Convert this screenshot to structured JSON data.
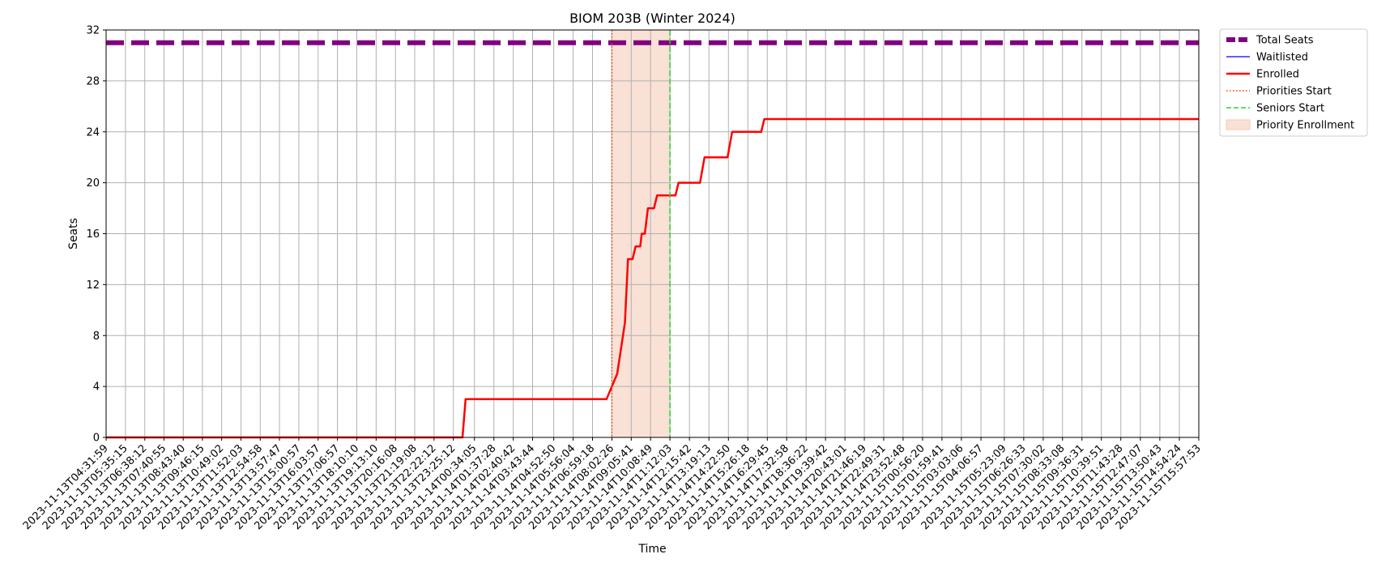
{
  "chart_data": {
    "type": "line",
    "title": "BIOM 203B (Winter 2024)",
    "xlabel": "Time",
    "ylabel": "Seats",
    "ylim": [
      0,
      32
    ],
    "yticks": [
      0,
      4,
      8,
      12,
      16,
      20,
      24,
      28,
      32
    ],
    "grid": true,
    "legend_position": "outside-top-right",
    "x_tick_labels": [
      "2023-11-13T04:31:59",
      "2023-11-13T05:35:15",
      "2023-11-13T06:38:12",
      "2023-11-13T07:40:55",
      "2023-11-13T08:43:40",
      "2023-11-13T09:46:15",
      "2023-11-13T10:49:02",
      "2023-11-13T11:52:03",
      "2023-11-13T12:54:58",
      "2023-11-13T13:57:47",
      "2023-11-13T15:00:57",
      "2023-11-13T16:03:57",
      "2023-11-13T17:06:57",
      "2023-11-13T18:10:10",
      "2023-11-13T19:13:10",
      "2023-11-13T20:16:08",
      "2023-11-13T21:19:08",
      "2023-11-13T22:22:12",
      "2023-11-13T23:25:12",
      "2023-11-14T00:34:05",
      "2023-11-14T01:37:28",
      "2023-11-14T02:40:42",
      "2023-11-14T03:43:44",
      "2023-11-14T04:52:50",
      "2023-11-14T05:56:04",
      "2023-11-14T06:59:18",
      "2023-11-14T08:02:26",
      "2023-11-14T09:05:41",
      "2023-11-14T10:08:49",
      "2023-11-14T11:12:03",
      "2023-11-14T12:15:42",
      "2023-11-14T13:19:13",
      "2023-11-14T14:22:50",
      "2023-11-14T15:26:18",
      "2023-11-14T16:29:45",
      "2023-11-14T17:32:58",
      "2023-11-14T18:36:22",
      "2023-11-14T19:39:42",
      "2023-11-14T20:43:01",
      "2023-11-14T21:46:19",
      "2023-11-14T22:49:31",
      "2023-11-14T23:52:48",
      "2023-11-15T00:56:20",
      "2023-11-15T01:59:41",
      "2023-11-15T03:03:06",
      "2023-11-15T04:06:57",
      "2023-11-15T05:23:09",
      "2023-11-15T06:26:33",
      "2023-11-15T07:30:02",
      "2023-11-15T08:33:08",
      "2023-11-15T09:36:31",
      "2023-11-15T10:39:51",
      "2023-11-15T11:43:28",
      "2023-11-15T12:47:07",
      "2023-11-15T13:50:43",
      "2023-11-15T14:54:24",
      "2023-11-15T15:57:53"
    ],
    "series": [
      {
        "name": "Total Seats",
        "color": "#800080",
        "style": "dashed-thick",
        "points": [
          [
            "2023-11-13T04:31:59",
            31
          ],
          [
            "2023-11-15T15:57:53",
            31
          ]
        ]
      },
      {
        "name": "Waitlisted",
        "color": "#0000ff",
        "style": "solid-thin",
        "points": []
      },
      {
        "name": "Enrolled",
        "color": "#ff0000",
        "style": "solid",
        "points": [
          [
            "2023-11-13T04:31:59",
            0
          ],
          [
            "2023-11-13T23:25:12",
            0
          ],
          [
            "2023-11-13T23:55:00",
            0
          ],
          [
            "2023-11-14T00:05:00",
            3
          ],
          [
            "2023-11-14T07:45:00",
            3
          ],
          [
            "2023-11-14T08:02:26",
            4
          ],
          [
            "2023-11-14T08:20:00",
            5
          ],
          [
            "2023-11-14T08:45:00",
            9
          ],
          [
            "2023-11-14T08:55:00",
            14
          ],
          [
            "2023-11-14T09:10:00",
            14
          ],
          [
            "2023-11-14T09:20:00",
            15
          ],
          [
            "2023-11-14T09:35:00",
            15
          ],
          [
            "2023-11-14T09:40:00",
            16
          ],
          [
            "2023-11-14T09:50:00",
            16
          ],
          [
            "2023-11-14T10:00:00",
            18
          ],
          [
            "2023-11-14T10:20:00",
            18
          ],
          [
            "2023-11-14T10:30:00",
            19
          ],
          [
            "2023-11-14T11:30:00",
            19
          ],
          [
            "2023-11-14T11:40:00",
            20
          ],
          [
            "2023-11-14T12:50:00",
            20
          ],
          [
            "2023-11-14T13:05:00",
            22
          ],
          [
            "2023-11-14T14:20:00",
            22
          ],
          [
            "2023-11-14T14:35:00",
            24
          ],
          [
            "2023-11-14T16:10:00",
            24
          ],
          [
            "2023-11-14T16:20:00",
            25
          ],
          [
            "2023-11-15T15:57:53",
            25
          ]
        ]
      }
    ],
    "vertical_lines": [
      {
        "name": "Priorities Start",
        "color": "#ff4500",
        "style": "dotted",
        "x": "2023-11-14T08:02:26"
      },
      {
        "name": "Seniors Start",
        "color": "#32cd32",
        "style": "dashed",
        "x": "2023-11-14T11:12:03"
      }
    ],
    "shaded_region": {
      "name": "Priority Enrollment",
      "color": "#f4c9b5",
      "x_start": "2023-11-14T08:02:26",
      "x_end": "2023-11-14T11:12:03"
    },
    "legend": [
      "Total Seats",
      "Waitlisted",
      "Enrolled",
      "Priorities Start",
      "Seniors Start",
      "Priority Enrollment"
    ]
  }
}
